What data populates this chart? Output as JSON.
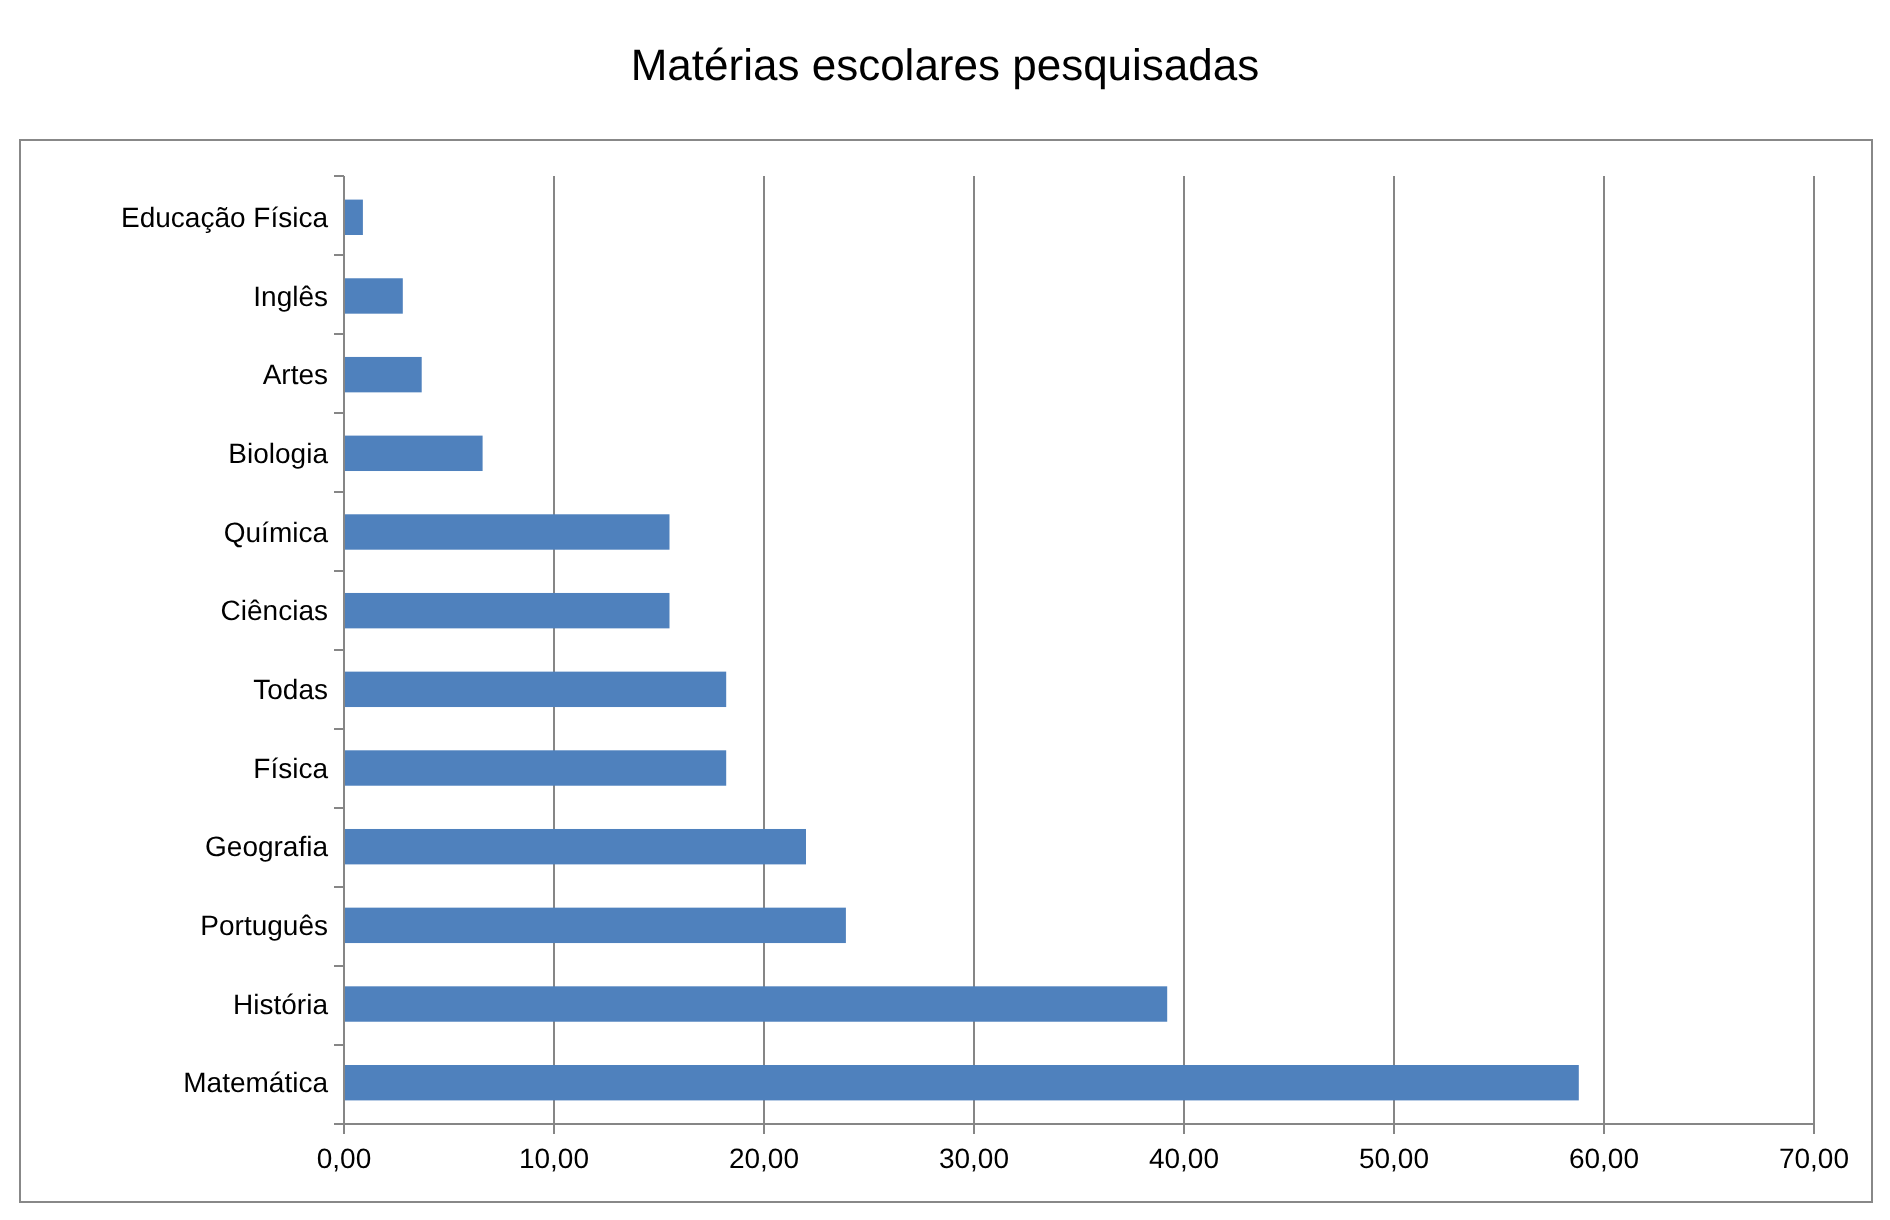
{
  "chart_data": {
    "type": "bar",
    "orientation": "horizontal",
    "title": "Matérias escolares pesquisadas",
    "categories": [
      "Educação Física",
      "Inglês",
      "Artes",
      "Biologia",
      "Química",
      "Ciências",
      "Todas",
      "Física",
      "Geografia",
      "Português",
      "História",
      "Matemática"
    ],
    "values": [
      0.9,
      2.8,
      3.7,
      6.6,
      15.5,
      15.5,
      18.2,
      18.2,
      22,
      23.9,
      39.2,
      58.8
    ],
    "color": "#4f81bd",
    "xlim": [
      0,
      70
    ],
    "xticks": [
      {
        "value": 0,
        "label": "0,00"
      },
      {
        "value": 10,
        "label": "10,00"
      },
      {
        "value": 20,
        "label": "20,00"
      },
      {
        "value": 30,
        "label": "30,00"
      },
      {
        "value": 40,
        "label": "40,00"
      },
      {
        "value": 50,
        "label": "50,00"
      },
      {
        "value": 60,
        "label": "60,00"
      },
      {
        "value": 70,
        "label": "70,00"
      }
    ],
    "grid": "x"
  }
}
